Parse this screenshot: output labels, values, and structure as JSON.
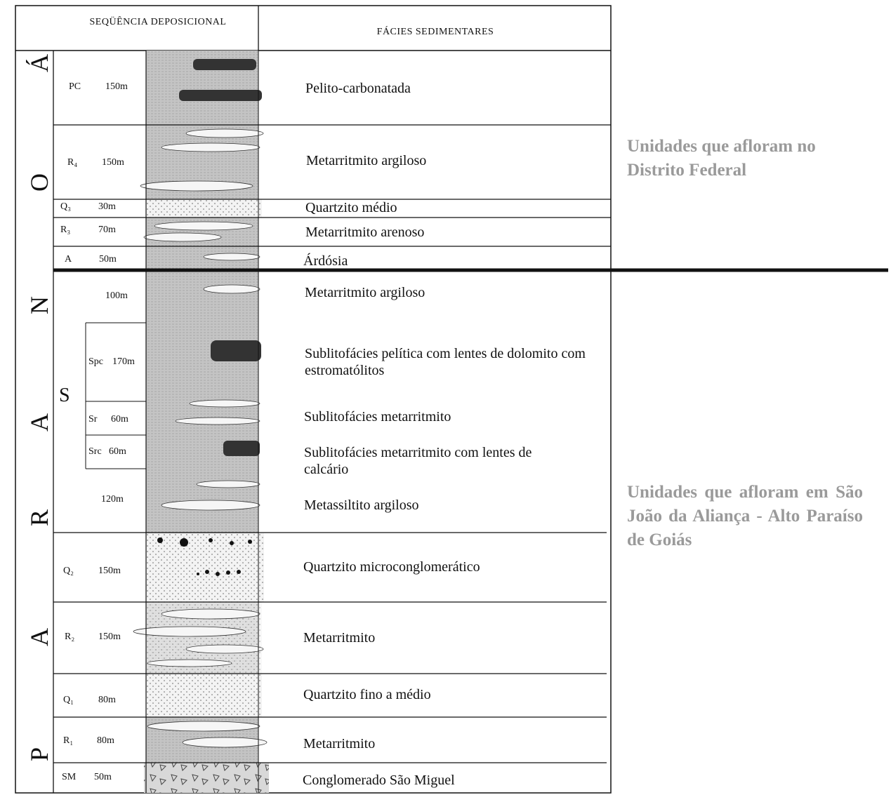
{
  "header": {
    "sequence_title": "SEQÜÊNCIA DEPOSICIONAL",
    "facies_title": "FÁCIES SEDIMENTARES"
  },
  "group_letters": [
    "P",
    "A",
    "R",
    "A",
    "N",
    "O",
    "Á"
  ],
  "units": [
    {
      "code": "PC",
      "thickness": "150m",
      "facies": "Pelito-carbonatada"
    },
    {
      "code": "R₄",
      "thickness": "150m",
      "facies": "Metarritmito argiloso"
    },
    {
      "code": "Q₃",
      "thickness": "30m",
      "facies": "Quartzito médio"
    },
    {
      "code": "R₃",
      "thickness": "70m",
      "facies": "Metarritmito arenoso"
    },
    {
      "code": "A",
      "thickness": "50m",
      "facies": "Árdósia"
    },
    {
      "code": "",
      "thickness": "100m",
      "facies": "Metarritmito argiloso"
    },
    {
      "code": "Spc",
      "thickness": "170m",
      "facies": "Sublitofácies pelítica com lentes de dolomito com estromatólitos"
    },
    {
      "code": "Sr",
      "thickness": "60m",
      "facies": "Sublitofácies metarritmito"
    },
    {
      "code": "Src",
      "thickness": "60m",
      "facies": "Sublitofácies metarritmito com lentes de calcário"
    },
    {
      "code": "",
      "thickness": "120m",
      "facies": "Metassiltito argiloso"
    },
    {
      "code": "Q₂",
      "thickness": "150m",
      "facies": "Quartzito microconglomerático"
    },
    {
      "code": "R₂",
      "thickness": "150m",
      "facies": "Metarritmito"
    },
    {
      "code": "Q₁",
      "thickness": "80m",
      "facies": "Quartzito fino a médio"
    },
    {
      "code": "R₁",
      "thickness": "80m",
      "facies": "Metarritmito"
    },
    {
      "code": "SM",
      "thickness": "50m",
      "facies": "Conglomerado São Miguel"
    }
  ],
  "s_unit_label": "S",
  "notes": {
    "upper": "Unidades que afloram no Distrito Federal",
    "lower": "Unidades que afloram em São João da Aliança - Alto Paraíso de Goiás"
  },
  "colors": {
    "lines": "#111111",
    "pelite_fill": "#bdbdbd",
    "note_text": "#9a9a9a"
  }
}
